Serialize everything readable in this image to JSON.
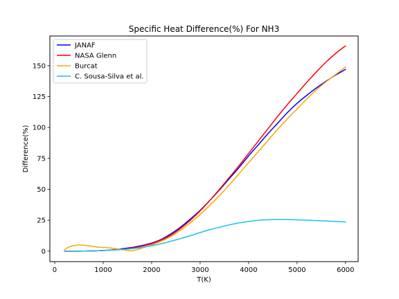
{
  "chart_data": {
    "type": "line",
    "title": "Specific Heat Difference(%) For NH3",
    "xlabel": "T(K)",
    "ylabel": "Difference(%)",
    "xlim": [
      -100,
      6260
    ],
    "ylim": [
      -8.5,
      174
    ],
    "xticks": [
      0,
      1000,
      2000,
      3000,
      4000,
      5000,
      6000
    ],
    "yticks": [
      0,
      25,
      50,
      75,
      100,
      125,
      150
    ],
    "grid": false,
    "legend_position": "top-left",
    "series": [
      {
        "name": "JANAF",
        "color": "#0000ff",
        "x": [
          200,
          500,
          800,
          1000,
          1200,
          1400,
          1600,
          1800,
          2000,
          2200,
          2400,
          2600,
          2800,
          3000,
          3200,
          3400,
          3600,
          3800,
          4000,
          4200,
          4400,
          4600,
          4800,
          5000,
          5200,
          5400,
          5600,
          5800,
          6000
        ],
        "y": [
          0,
          0,
          0.2,
          0.5,
          1,
          2,
          3,
          4.5,
          6.5,
          9.5,
          14,
          19.5,
          26,
          33,
          41,
          49.5,
          58.5,
          67.5,
          77,
          86,
          95,
          103.5,
          112,
          119.5,
          126,
          132,
          137.5,
          142.5,
          147
        ]
      },
      {
        "name": "NASA Glenn",
        "color": "#ff0000",
        "x": [
          200,
          500,
          800,
          1000,
          1200,
          1400,
          1600,
          1800,
          2000,
          2200,
          2400,
          2600,
          2800,
          3000,
          3200,
          3400,
          3600,
          3800,
          4000,
          4200,
          4400,
          4600,
          4800,
          5000,
          5200,
          5400,
          5600,
          5800,
          6000
        ],
        "y": [
          0,
          0,
          0.2,
          0.5,
          1,
          1.5,
          2.5,
          4,
          6,
          9,
          13,
          18.5,
          25,
          32.5,
          41,
          50,
          59.5,
          69,
          79,
          89,
          99,
          109,
          118.5,
          127.5,
          136.5,
          145,
          153,
          160,
          166
        ]
      },
      {
        "name": "Burcat",
        "color": "#ffa500",
        "x": [
          200,
          300,
          400,
          500,
          600,
          700,
          800,
          900,
          1000,
          1100,
          1200,
          1300,
          1400,
          1500,
          1550,
          1600,
          1700,
          1800,
          2000,
          2200,
          2400,
          2600,
          2800,
          3000,
          3200,
          3400,
          3600,
          3800,
          4000,
          4200,
          4400,
          4600,
          4800,
          5000,
          5200,
          5400,
          5600,
          5800,
          6000
        ],
        "y": [
          1,
          3.5,
          4.5,
          5,
          4.8,
          4.3,
          3.8,
          3.2,
          3,
          2.8,
          2.3,
          1.8,
          1.2,
          0.5,
          0.2,
          0.3,
          1.2,
          2.5,
          5,
          8,
          12,
          17,
          23,
          29.5,
          37,
          45,
          53.5,
          62.5,
          71.5,
          80.5,
          89.5,
          98.5,
          107,
          115,
          123,
          130.5,
          137,
          143,
          149
        ]
      },
      {
        "name": "C. Sousa-Silva et al.",
        "color": "#1ebff0",
        "x": [
          200,
          500,
          800,
          1000,
          1200,
          1400,
          1600,
          1800,
          2000,
          2200,
          2400,
          2600,
          2800,
          3000,
          3200,
          3400,
          3600,
          3800,
          4000,
          4200,
          4400,
          4600,
          4800,
          5000,
          5200,
          5400,
          5600,
          5800,
          6000
        ],
        "y": [
          0,
          0,
          0.2,
          0.5,
          0.8,
          1.3,
          2,
          3,
          4.3,
          6,
          8,
          10.2,
          12.5,
          15,
          17.3,
          19.3,
          21.2,
          22.8,
          24,
          24.9,
          25.4,
          25.6,
          25.5,
          25.3,
          25,
          24.7,
          24.4,
          24,
          23.6
        ]
      }
    ]
  }
}
